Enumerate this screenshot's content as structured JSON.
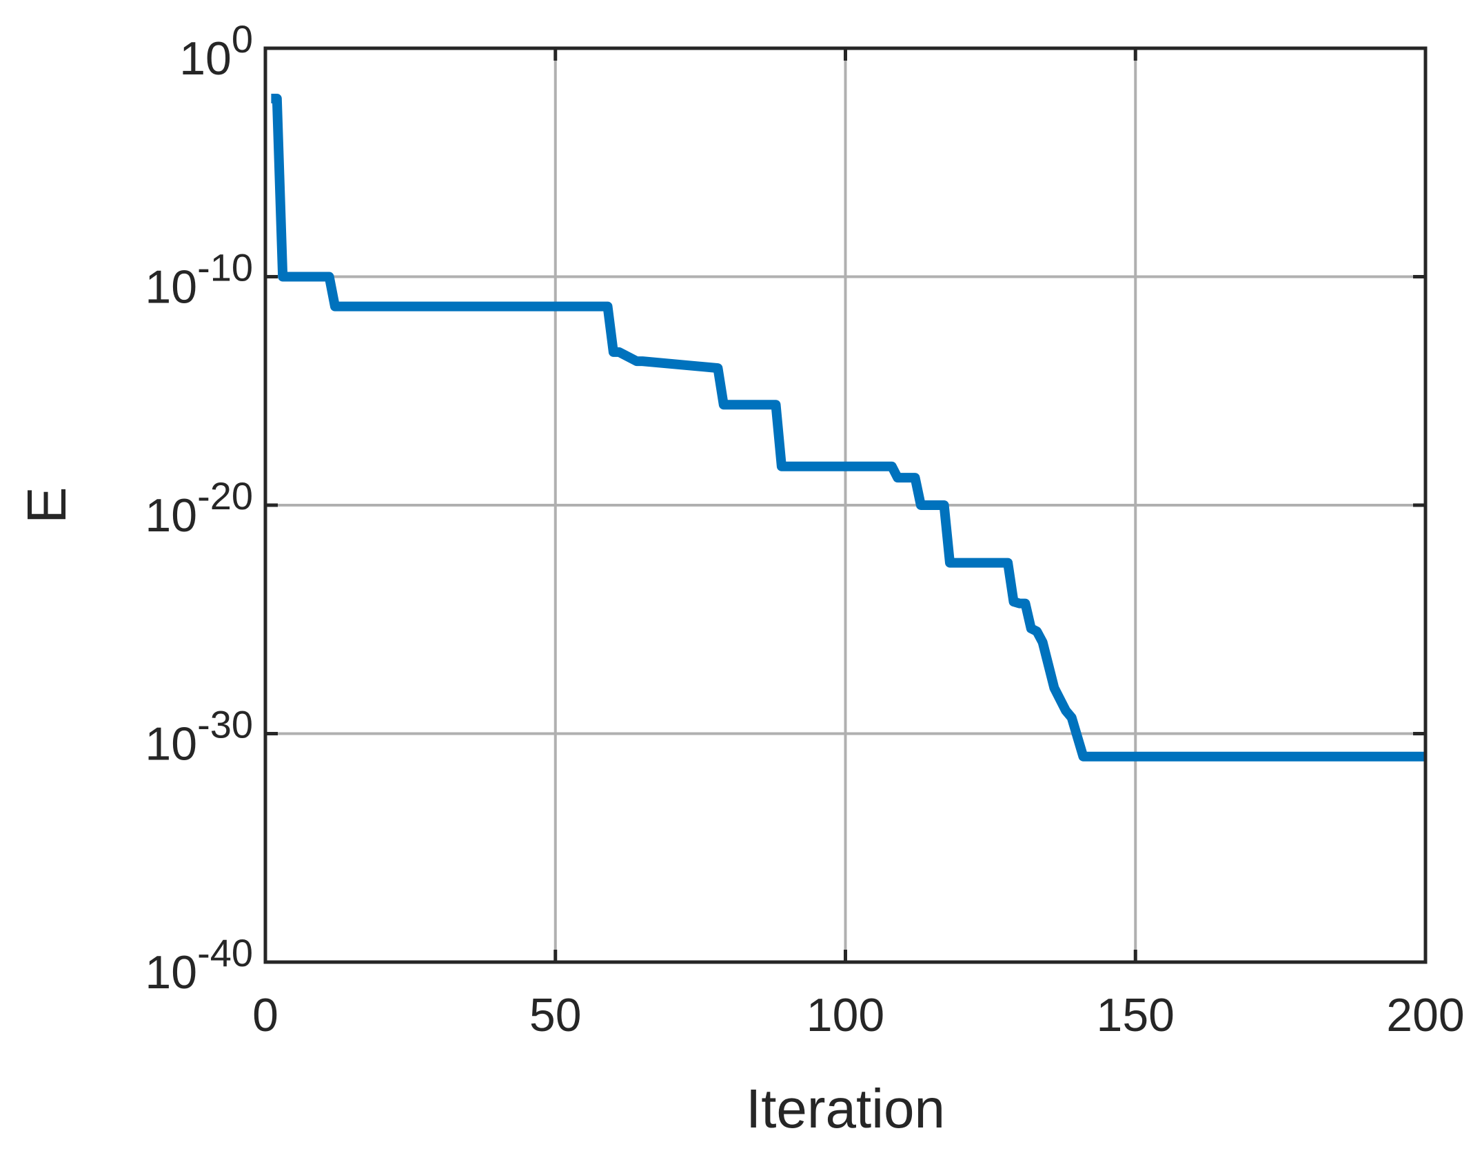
{
  "chart_data": {
    "type": "line",
    "xlabel": "Iteration",
    "ylabel": "E",
    "xlim": [
      0,
      200
    ],
    "ylim": [
      1e-40,
      1
    ],
    "yscale": "log",
    "grid": true,
    "xticks": [
      0,
      50,
      100,
      150,
      200
    ],
    "xtick_labels": [
      "0",
      "50",
      "100",
      "150",
      "200"
    ],
    "yticks": [
      1e-40,
      1e-30,
      1e-20,
      1e-10,
      1
    ],
    "ytick_labels": [
      {
        "base": "10",
        "exp": "-40"
      },
      {
        "base": "10",
        "exp": "-30"
      },
      {
        "base": "10",
        "exp": "-20"
      },
      {
        "base": "10",
        "exp": "-10"
      },
      {
        "base": "10",
        "exp": "0"
      }
    ],
    "colors": {
      "line": "#0072BD",
      "grid": "#b0b0b0",
      "axes": "#262626"
    },
    "series": [
      {
        "x": [
          1,
          2,
          3,
          11,
          12,
          59,
          60,
          61,
          64,
          65,
          78,
          79,
          88,
          89,
          108,
          109,
          112,
          113,
          117,
          118,
          128,
          129,
          130,
          131,
          132,
          133,
          134,
          135,
          136,
          138,
          139,
          141,
          200
        ],
        "y": [
          0.0063,
          0.0063,
          1e-10,
          1e-10,
          5e-12,
          5e-12,
          5e-14,
          5e-14,
          2e-14,
          2e-14,
          1e-14,
          2.5e-16,
          2.5e-16,
          5e-19,
          5e-19,
          1.6e-19,
          1.6e-19,
          1e-20,
          1e-20,
          3e-23,
          3e-23,
          6e-25,
          5e-25,
          5e-25,
          4e-26,
          3e-26,
          1e-26,
          1e-27,
          1e-28,
          1e-29,
          5e-30,
          1e-31,
          1e-31
        ]
      }
    ]
  }
}
